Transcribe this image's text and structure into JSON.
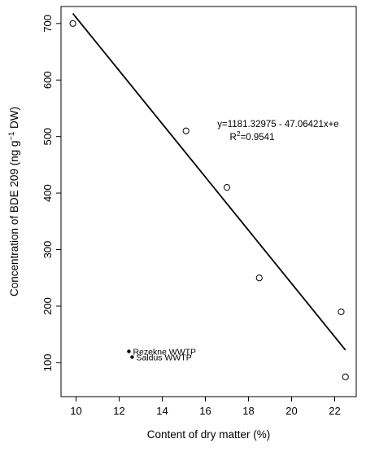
{
  "chart_data": {
    "type": "scatter",
    "title": "",
    "xlabel": "Content of dry matter (%)",
    "ylabel": {
      "main": "Concentration of BDE 209 (ng g",
      "sup": "−1",
      "tail": " DW)"
    },
    "xlim": [
      9.3,
      23.0
    ],
    "ylim": [
      40,
      730
    ],
    "x_ticks": [
      10,
      12,
      14,
      16,
      18,
      20,
      22
    ],
    "y_ticks": [
      100,
      200,
      300,
      400,
      500,
      600,
      700
    ],
    "grid": false,
    "series": [
      {
        "marker": "open-circle",
        "points": [
          {
            "x": 9.85,
            "y": 700
          },
          {
            "x": 15.1,
            "y": 510
          },
          {
            "x": 17.0,
            "y": 410
          },
          {
            "x": 18.5,
            "y": 250
          },
          {
            "x": 22.3,
            "y": 190
          },
          {
            "x": 22.5,
            "y": 75
          }
        ]
      },
      {
        "marker": "filled-dot",
        "points": [
          {
            "x": 12.45,
            "y": 120,
            "label": "Rezekne WWTP"
          },
          {
            "x": 12.6,
            "y": 110,
            "label": "Saldus WWTP"
          }
        ]
      }
    ],
    "fit_line": {
      "x_start": 9.85,
      "x_end": 22.5,
      "intercept": 1181.32975,
      "slope": -47.06421
    },
    "equation": {
      "line1": "y=1181.32975 - 47.06421x+e",
      "r2_prefix": "R",
      "r2_sup": "2",
      "r2_value": "=0.9541"
    }
  }
}
